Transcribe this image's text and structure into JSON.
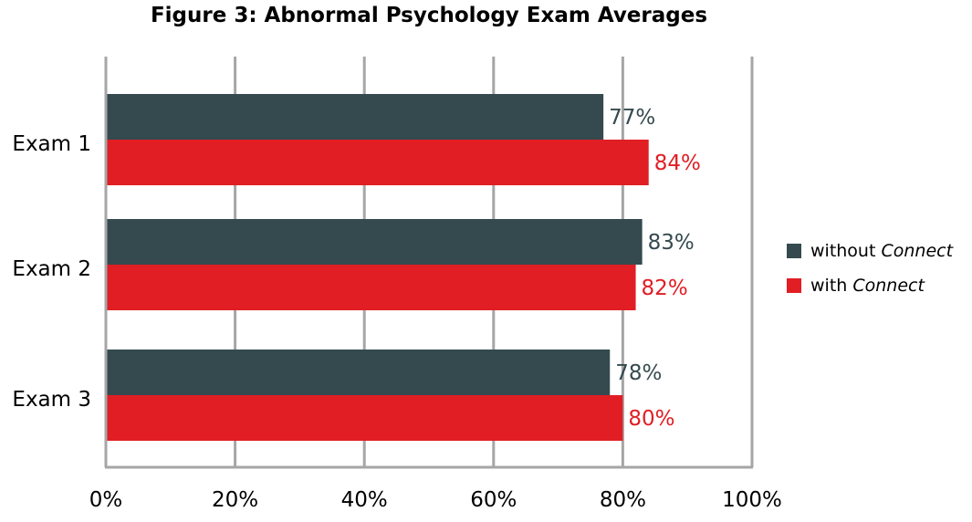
{
  "chart_data": {
    "type": "bar",
    "orientation": "horizontal",
    "title": "Figure 3: Abnormal Psychology Exam Averages",
    "categories": [
      "Exam 1",
      "Exam 2",
      "Exam 3"
    ],
    "series": [
      {
        "name": "without Connect",
        "name_prefix": "without",
        "name_emph": "Connect",
        "color": "#354a4f",
        "values": [
          77,
          83,
          78
        ]
      },
      {
        "name": "with Connect",
        "name_prefix": "with",
        "name_emph": "Connect",
        "color": "#e01e24",
        "values": [
          84,
          82,
          80
        ]
      }
    ],
    "xlim": [
      0,
      100
    ],
    "xticks": [
      0,
      20,
      40,
      60,
      80,
      100
    ],
    "tick_suffix": "%",
    "grid": true,
    "legend_position": "right"
  }
}
